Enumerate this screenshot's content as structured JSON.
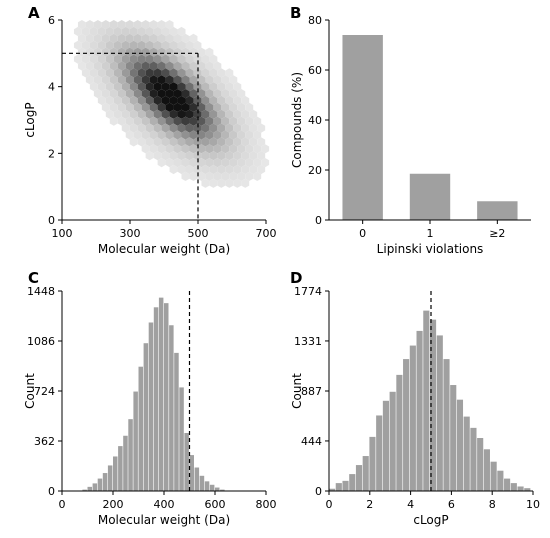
{
  "chart_data": [
    {
      "panel": "A",
      "type": "heatmap",
      "xlabel": "Molecular weight (Da)",
      "ylabel": "cLogP",
      "xlim": [
        100,
        700
      ],
      "ylim": [
        0,
        6
      ],
      "xticks": [
        100,
        300,
        500,
        700
      ],
      "yticks": [
        0,
        2,
        4,
        6
      ],
      "reference_lines": {
        "x": 500,
        "y": 5
      },
      "density_peak": {
        "x": 420,
        "y": 3.7
      },
      "colors": {
        "low": "#f4f4f4",
        "high": "#111111"
      }
    },
    {
      "panel": "B",
      "type": "bar",
      "xlabel": "Lipinski violations",
      "ylabel": "Compounds (%)",
      "categories": [
        "0",
        "1",
        "≥2"
      ],
      "values": [
        74,
        18.5,
        7.5
      ],
      "ylim": [
        0,
        80
      ],
      "yticks": [
        0,
        20,
        40,
        60,
        80
      ],
      "colors": {
        "bar": "#a0a0a0"
      }
    },
    {
      "panel": "C",
      "type": "bar",
      "xlabel": "Molecular weight (Da)",
      "ylabel": "Count",
      "xlim": [
        0,
        800
      ],
      "ylim": [
        0,
        1448
      ],
      "xticks": [
        0,
        200,
        400,
        600,
        800
      ],
      "yticks": [
        0,
        362,
        724,
        1086,
        1448
      ],
      "bin_start": 80,
      "bin_width": 20,
      "values": [
        10,
        30,
        55,
        90,
        130,
        185,
        250,
        325,
        400,
        520,
        720,
        900,
        1070,
        1220,
        1330,
        1400,
        1360,
        1200,
        1000,
        750,
        420,
        260,
        170,
        110,
        70,
        45,
        25,
        10
      ],
      "reference_line": 500,
      "colors": {
        "bar": "#a0a0a0"
      }
    },
    {
      "panel": "D",
      "type": "bar",
      "xlabel": "cLogP",
      "ylabel": "Count",
      "xlim": [
        0,
        10
      ],
      "ylim": [
        0,
        1774
      ],
      "xticks": [
        0,
        2,
        4,
        6,
        8,
        10
      ],
      "yticks": [
        0,
        444,
        887,
        1331,
        1774
      ],
      "bin_start": 0,
      "bin_width": 0.33,
      "values": [
        20,
        70,
        90,
        150,
        230,
        310,
        480,
        670,
        800,
        880,
        1030,
        1170,
        1290,
        1420,
        1600,
        1520,
        1380,
        1170,
        940,
        810,
        660,
        560,
        470,
        370,
        260,
        180,
        110,
        70,
        40,
        25
      ],
      "reference_line": 5,
      "colors": {
        "bar": "#a0a0a0"
      }
    }
  ]
}
